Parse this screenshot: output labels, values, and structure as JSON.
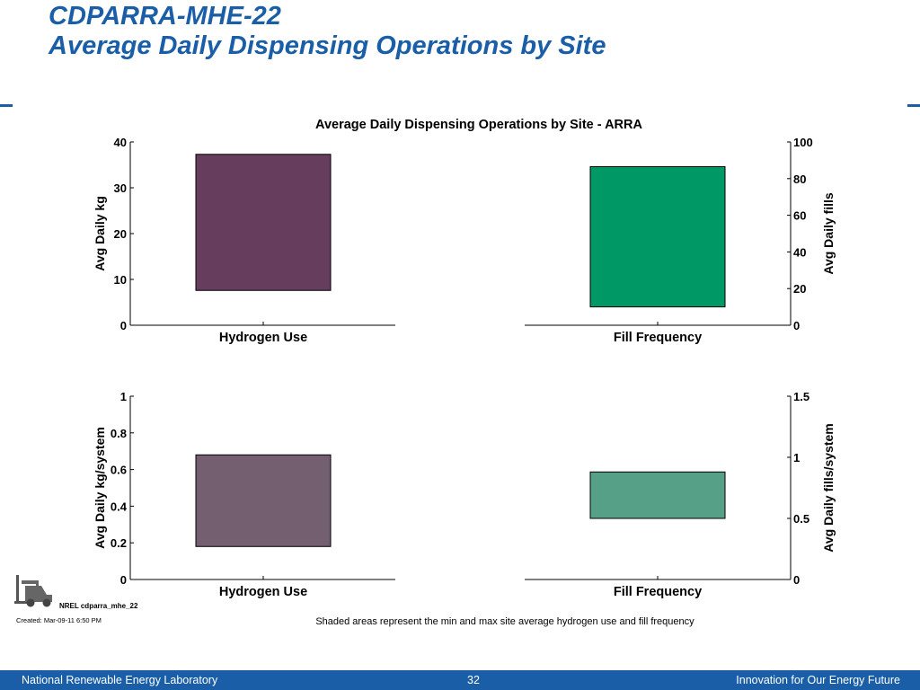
{
  "slide": {
    "title_line1": "CDPARRA-MHE-22",
    "title_line2": "Average Daily Dispensing Operations by Site",
    "note": "Shaded areas represent the min and max site average hydrogen use and fill frequency",
    "nrel_id": "NREL cdparra_mhe_22",
    "created": "Created: Mar-09-11  6:50 PM"
  },
  "footer": {
    "left": "National Renewable Energy Laboratory",
    "center": "32",
    "right": "Innovation for Our Energy Future"
  },
  "chart_data": [
    {
      "type": "bar",
      "title": "Average Daily Dispensing Operations by Site - ARRA",
      "categories": [
        "Hydrogen Use",
        "Fill Frequency"
      ],
      "left_axis": {
        "label": "Avg Daily kg",
        "ylim": [
          0,
          40
        ],
        "ticks": [
          "0",
          "10",
          "20",
          "30",
          "40"
        ],
        "tick_values": [
          0,
          10,
          20,
          30,
          40
        ]
      },
      "right_axis": {
        "label": "Avg Daily fills",
        "ylim": [
          0,
          100
        ],
        "ticks": [
          "0",
          "20",
          "40",
          "60",
          "80",
          "100"
        ],
        "tick_values": [
          0,
          20,
          40,
          60,
          80,
          100
        ]
      },
      "bars": [
        {
          "category": "Hydrogen Use",
          "axis": "left",
          "min": 7.6,
          "max": 37.3,
          "color": "#673d5e"
        },
        {
          "category": "Fill Frequency",
          "axis": "right",
          "min": 10,
          "max": 86.5,
          "color": "#009966"
        }
      ]
    },
    {
      "type": "bar",
      "title": "",
      "categories": [
        "Hydrogen Use",
        "Fill Frequency"
      ],
      "left_axis": {
        "label": "Avg Daily kg/system",
        "ylim": [
          0,
          1
        ],
        "ticks": [
          "0",
          "0.2",
          "0.4",
          "0.6",
          "0.8",
          "1"
        ],
        "tick_values": [
          0,
          0.2,
          0.4,
          0.6,
          0.8,
          1
        ]
      },
      "right_axis": {
        "label": "Avg Daily fills/system",
        "ylim": [
          0,
          1.5
        ],
        "ticks": [
          "0",
          "0.5",
          "1",
          "1.5"
        ],
        "tick_values": [
          0,
          0.5,
          1,
          1.5
        ]
      },
      "bars": [
        {
          "category": "Hydrogen Use",
          "axis": "left",
          "min": 0.18,
          "max": 0.68,
          "color": "#735f6f"
        },
        {
          "category": "Fill Frequency",
          "axis": "right",
          "min": 0.5,
          "max": 0.88,
          "color": "#56a088"
        }
      ]
    }
  ]
}
